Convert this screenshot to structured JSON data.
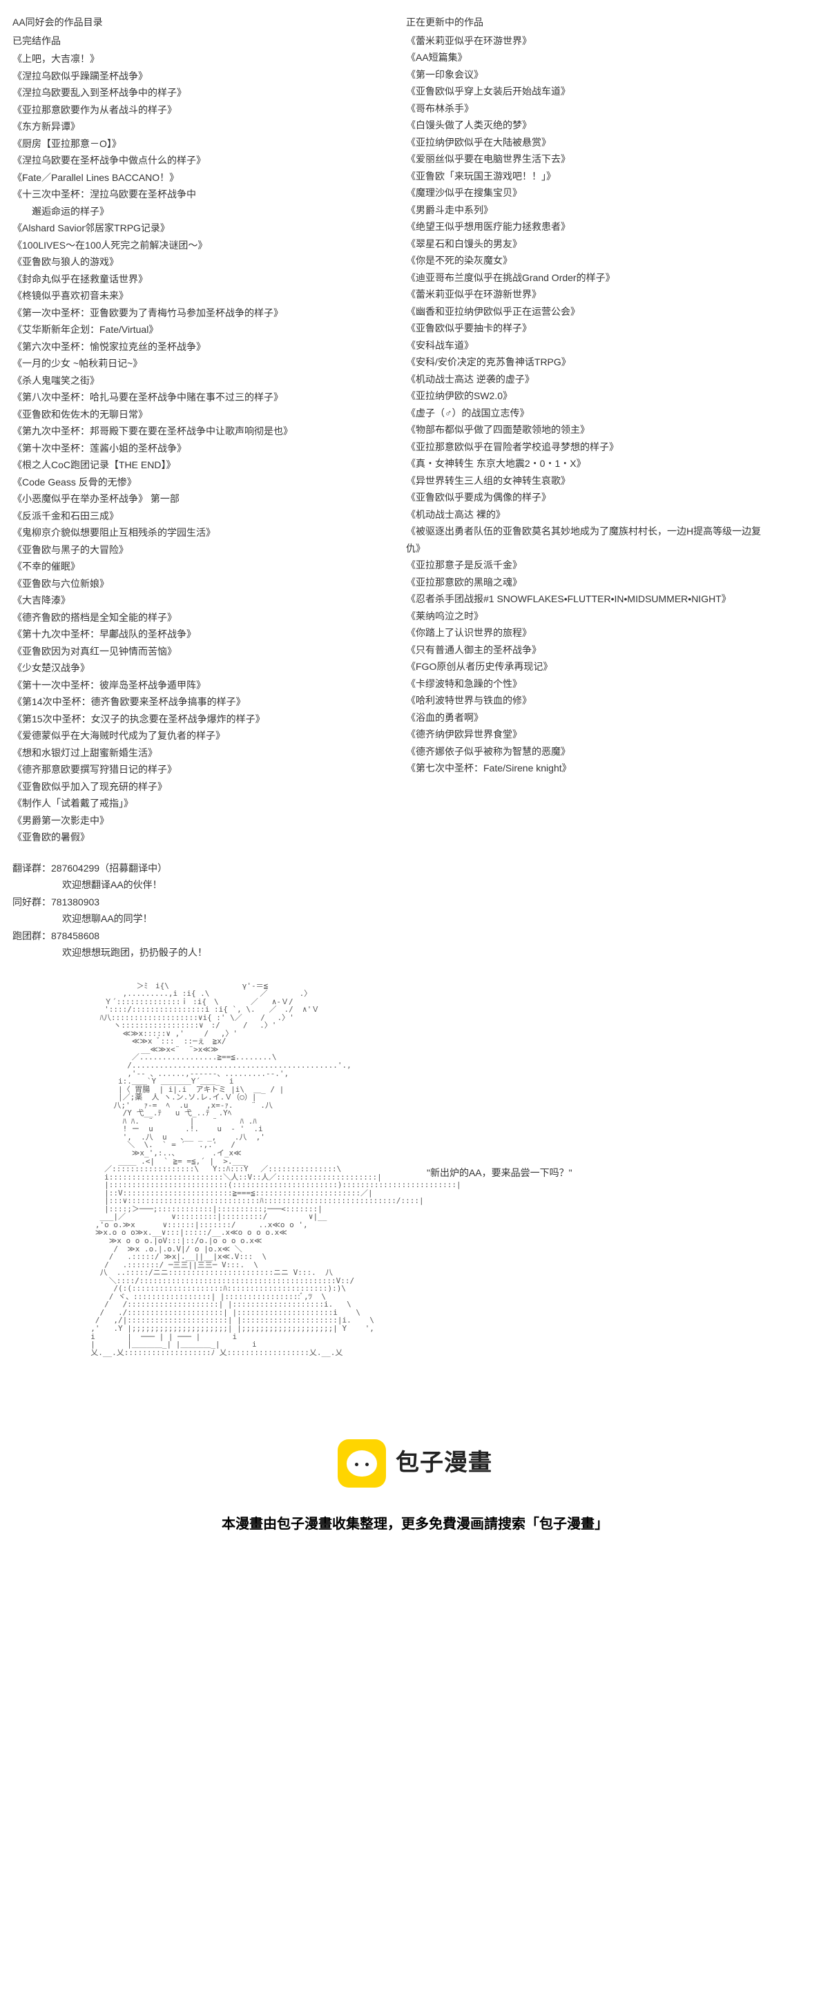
{
  "left": {
    "heading": "AA同好会的作品目录",
    "subheading": "已完结作品",
    "items": [
      "《上吧，大吉凛！》",
      "《涅拉乌欧似乎躁躏圣杯战争》",
      "《涅拉乌欧要乱入到圣杯战争中的样子》",
      "《亚拉那意欧要作为从者战斗的样子》",
      "《东方新异谭》",
      "《厨房【亚拉那意－O】》",
      "《涅拉乌欧要在圣杯战争中做点什么的样子》",
      "《Fate／Parallel Lines BACCANO！》",
      "《十三次中圣杯：涅拉乌欧要在圣杯战争中",
      "　　邂逅命运的样子》",
      "《Alshard Savior邻居家TRPG记录》",
      "《100LIVES～在100人死完之前解决谜团～》",
      "《亚鲁欧与狼人的游戏》",
      "《封命丸似乎在拯救童话世界》",
      "《柊镜似乎喜欢初音未来》",
      "《第一次中圣杯：亚鲁欧要为了青梅竹马参加圣杯战争的样子》",
      "《艾华斯新年企划：Fate/Virtual》",
      "《第六次中圣杯：愉悦家拉克丝的圣杯战争》",
      "《一月的少女 ~帕秋莉日记~》",
      "《杀人鬼嗤笑之街》",
      "《第八次中圣杯：哈扎马要在圣杯战争中赌在事不过三的样子》",
      "《亚鲁欧和佐佐木的无聊日常》",
      "《第九次中圣杯：邦哥殿下要在要在圣杯战争中让歌声响彻是也》",
      "《第十次中圣杯：莲酱小姐的圣杯战争》",
      "《根之人CoC跑团记录【THE END】》",
      "《Code Geass 反骨的无惨》",
      "《小恶魔似乎在举办圣杯战争》 第一部",
      "《反派千金和石田三成》",
      "《鬼柳京介貌似想要阻止互相残杀的学园生活》",
      "《亚鲁欧与黑子的大冒险》",
      "《不幸的催眠》",
      "《亚鲁欧与六位新娘》",
      "《大吉降溙》",
      "《德齐鲁欧的搭档是全知全能的样子》",
      "《第十九次中圣杯：早鄘战队的圣杯战争》",
      "《亚鲁欧因为对真红一见钟情而苦恼》",
      "《少女楚汉战争》",
      "《第十一次中圣杯：彼岸岛圣杯战争遁甲阵》",
      "《第14次中圣杯：德齐鲁欧要来圣杯战争搞事的样子》",
      "《第15次中圣杯：女汉子的执念要在圣杯战争爆炸的样子》",
      "《爱德蒙似乎在大海贼时代成为了复仇者的样子》",
      "《想和水银灯过上甜蜜新婚生活》",
      "《德齐那意欧要撰写狩猎日记的样子》",
      "《亚鲁欧似乎加入了现充研的样子》",
      "《制作人「试着戴了戒指」》",
      "《男爵第一次影走中》",
      "《亚鲁欧的暑假》"
    ]
  },
  "right": {
    "heading": "正在更新中的作品",
    "items": [
      "《蕾米莉亚似乎在环游世界》",
      "《AA短篇集》",
      "《第一印象会议》",
      "《亚鲁欧似乎穿上女装后开始战车道》",
      "《哥布林杀手》",
      "《白馒头做了人类灭绝的梦》",
      "《亚拉纳伊欧似乎在大陆被悬赏》",
      "《爱丽丝似乎要在电脑世界生活下去》",
      "《亚鲁欧「来玩国王游戏吧！！」》",
      "《魔理沙似乎在搜集宝贝》",
      "《男爵斗走中系列》",
      "《绝望王似乎想用医疗能力拯救患者》",
      "《翠星石和白馒头的男友》",
      "《你是不死的染灰魔女》",
      "《迪亚哥布兰度似乎在挑战Grand Order的样子》",
      "《蕾米莉亚似乎在环游新世界》",
      "《幽香和亚拉纳伊欧似乎正在运营公会》",
      "《亚鲁欧似乎要抽卡的样子》",
      "《安科战车道》",
      "《安科/安价决定的克苏鲁神话TRPG》",
      "《机动战士高达 逆袭的虚子》",
      "《亚拉纳伊欧的SW2.0》",
      "《虚子（♂）的战国立志传》",
      "《物部布都似乎做了四面楚歌领地的领主》",
      "《亚拉那意欧似乎在冒险者学校追寻梦想的样子》",
      "《真・女神转生 东京大地震2・0・1・X》",
      "《异世界转生三人组的女神转生哀歌》",
      "《亚鲁欧似乎要成为偶像的样子》",
      "《机动战士高达 裸的》",
      "《被驱逐出勇者队伍的亚鲁欧莫名其妙地成为了魔族村村长，一边H提高等级一边复仇》",
      "《亚拉那意子是反派千金》",
      "《亚拉那意欧的黑暗之魂》",
      "《忍者杀手团战报#1 SNOWFLAKES•FLUTTER•IN•MIDSUMMER•NIGHT》",
      "《莱纳呜泣之时》",
      "《你踏上了认识世界的旅程》",
      "《只有普通人御主的圣杯战争》",
      "《FGO原创从者历史传承再现记》",
      "《卡缪波特和急躁的个性》",
      "《哈利波特世界与铁血的修》",
      "《浴血的勇者啊》",
      "《德齐纳伊欧异世界食堂》",
      "《德齐娜依子似乎被称为智慧的恶魔》",
      "《第七次中圣杯：Fate/Sirene knight》"
    ]
  },
  "groups": {
    "lines": [
      {
        "label": "翻译群：287604299（招募翻译中）",
        "indent": false
      },
      {
        "label": "欢迎想翻译AA的伙伴！",
        "indent": true
      },
      {
        "label": "同好群：781380903",
        "indent": false
      },
      {
        "label": "欢迎想聊AA的同学！",
        "indent": true
      },
      {
        "label": "跑团群：878458608",
        "indent": false
      },
      {
        "label": "欢迎想想玩跑团，扔扔骰子的人！",
        "indent": true
      }
    ]
  },
  "quote": "\"新出炉的AA，要来品尝一下吗？\"",
  "ascii_art": "            ＞ﾐ　i{\\                γ'-＝≦\n         ,.........,i :i{ .\\           ／       .〉\n     Ｙ´::::::::::::::ｉ :i{　\\       ／   ∧-Ｖ/\n     '::::/::::::::::::::::i :i{ `, \\.   ／　./  ∧'Ｖ\n    ﾊ八:::::::::::::::::::∨i{ :' \\／    /　 .〉'\n       ヽ:::::::::::::::::∨　:/     /　 .〉'\n         ≪≫x:::::∨ ,'　　 /　 ,〉'\n           ≪≫x ﾞ:::  ::─ぇ　≧x/\n             __≪≫x<¨  ¨>x≪≫\n           ／.................≧==≦........\\\n          /.............................................'.,\n          ,'‐- 、......,--‐‐‐‐、.........-‐.',\n        i:.＿＿`Y ＿＿＿＿Y´＿＿_  i\n        |〈 胃腸  | i|.i  アキトミ |i\\  ＿_ / |\n        |／;薬  人 ヽ.ン.ソ.レ.イ.Ｖ（○）|\n       八;'   ｧ-=  ﾍ  .u    ,x=-ｧ.    ¨ .八\n         /Y 弋__.ﾃ   u 弋_..ﾃ  .Yﾍ\n         ﾊ ﾊ.  ¨        |    ¨     ﾊ .ﾊ\n         ! ー  u       .!.    u  - '  .i\n         ',  .八  u   ､__ _ _,    .八  ,'\n          ＼  \\.  ` = ´   .,.'   /\n           ≫x_',:..､        .イ_x≪\n        ____ .<|  ` ≧= =≦,´ |  >.___\n     ／::::::::::::::::::\\   Y::ﾊ:::Y　 ／:::::::::::::::\\\n     i:::::::::::::::::::::::::＼人::V::人／::::::::::::::::::::::|\n     |::::::::::::::::::::::::::(:::::::::::::::::::::::):::::::::::::::::::::::::|\n     |::V::::::::::::::::::::::::≧===≦:::::::::::::::::::::::／|\n     |:::∨:::::::::::::::::::::::::::::ﾊ:::::::::::::::::::::::::::::/::::|\n     |::::;＞───;::::::::::::|::::::::::;───<:::::::|\n    ___|／          ∨:::::::::|:::::::::/         ∨|__\n   ,'o o.≫x      ∨::::::|:::::::/     ..x≪o o ',\n   ≫x.o o o≫x.__∨:::|:::::/__.x≪o o o o.x≪\n      ≫x o o o.|oV:::|::/o.|o o o o.x≪\n       /  ≫x .o.|.o.V|/ o |o.x≪ ＼\n      /   .:::::/ ≫x|.__||__|x≪.V:::  \\\n     /   .:::::::/ ─三三||三三─ V:::.  \\\n    八  ..:::::/ニニ:::::::::::::::::::::::ニニ V:::.  八\n      ＼::::/:::::::::::::::::::::::::::::::::::::::::::V::/\n       /(:(::::::::::::::::::::ﾊ::::::::::::::::::::::):)\\\n      / ヾ、:::::::::::::::::| |:::::::::::::::::ﾞ,ﾂ  \\\n     /   /::::::::::::::::::::| |::::::::::::::::::::i.   \\\n    /   ./:::::::::::::::::::::| |:::::::::::::::::::::i    \\\n   /   ,/|::::::::::::::::::::::| |:::::::::::::::::::::|i.    \\\n  ,'   .Y |;;;;;;;;;;;;;;;;;;;;;| |;;;;;;;;;;;;;;;;;;;;| Y    ',\n  i       |  ─── | | ─── |       i\n  |       |＿＿＿＿_| |＿＿＿＿_|       i\n  乂.__.乂:::::::::::::::::::ﾉ 乂::::::::::::::::::乂.__.乂",
  "footer": {
    "brand": "包子漫畫",
    "note": "本漫畫由包子漫畫收集整理，更多免費漫画請搜索「包子漫畫」"
  },
  "colors": {
    "bg": "#ffffff",
    "text": "#333333",
    "logo_bg": "#ffd500",
    "logo_text": "#222222"
  }
}
